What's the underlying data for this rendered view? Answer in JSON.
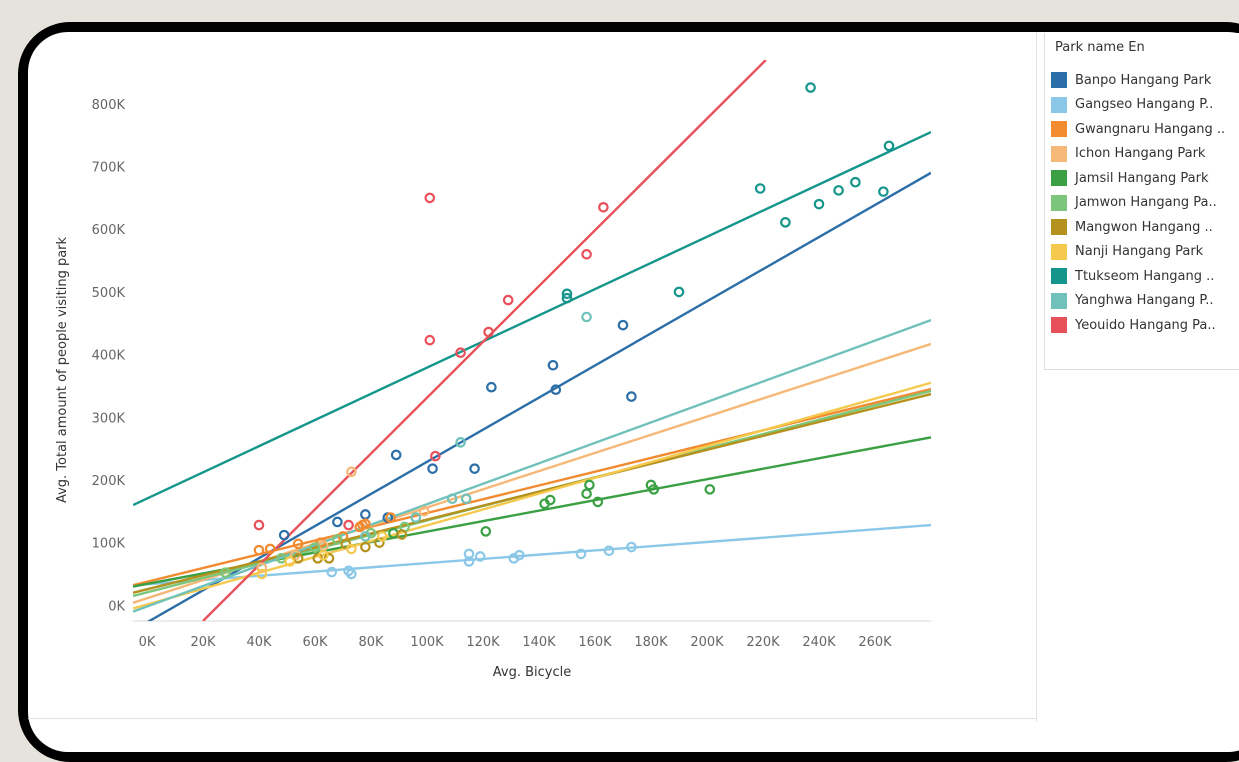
{
  "colors": {
    "axis": "#666666",
    "grid": "#e6e6e6"
  },
  "legend": {
    "title": "Park name En"
  },
  "chart_data": {
    "type": "scatter",
    "xlabel": "Avg. Bicycle",
    "ylabel": "Avg. Total amount of people visiting park",
    "xlim": [
      -5000,
      280000
    ],
    "ylim": [
      -25000,
      870000
    ],
    "x_ticks": [
      0,
      20000,
      40000,
      60000,
      80000,
      100000,
      120000,
      140000,
      160000,
      180000,
      200000,
      220000,
      240000,
      260000
    ],
    "x_tick_labels": [
      "0K",
      "20K",
      "40K",
      "60K",
      "80K",
      "100K",
      "120K",
      "140K",
      "160K",
      "180K",
      "200K",
      "220K",
      "240K",
      "260K"
    ],
    "y_ticks": [
      0,
      100000,
      200000,
      300000,
      400000,
      500000,
      600000,
      700000,
      800000
    ],
    "y_tick_labels": [
      "0K",
      "100K",
      "200K",
      "300K",
      "400K",
      "500K",
      "600K",
      "700K",
      "800K"
    ],
    "legend_position": "right",
    "grid": false,
    "trend_lines": true,
    "series": [
      {
        "name": "Banpo Hangang Park",
        "color": "#2c6ea8",
        "points": [
          [
            49000,
            112000
          ],
          [
            68000,
            133000
          ],
          [
            78000,
            145000
          ],
          [
            86000,
            140000
          ],
          [
            89000,
            240000
          ],
          [
            102000,
            218000
          ],
          [
            117000,
            218000
          ],
          [
            123000,
            348000
          ],
          [
            145000,
            383000
          ],
          [
            146000,
            344000
          ],
          [
            170000,
            447000
          ],
          [
            173000,
            333000
          ]
        ],
        "trend": [
          [
            -5000,
            -40000
          ],
          [
            280000,
            690000
          ]
        ]
      },
      {
        "name": "Gangseo Hangang P..",
        "color": "#8bc8e8",
        "points": [
          [
            66000,
            53000
          ],
          [
            72000,
            55000
          ],
          [
            73000,
            50000
          ],
          [
            115000,
            82000
          ],
          [
            115000,
            70000
          ],
          [
            119000,
            78000
          ],
          [
            131000,
            75000
          ],
          [
            133000,
            80000
          ],
          [
            155000,
            82000
          ],
          [
            165000,
            87000
          ],
          [
            173000,
            93000
          ]
        ],
        "trend": [
          [
            -5000,
            32000
          ],
          [
            280000,
            128000
          ]
        ]
      },
      {
        "name": "Gwangnaru Hangang ..",
        "color": "#f28a30",
        "points": [
          [
            40000,
            88000
          ],
          [
            44000,
            90000
          ],
          [
            54000,
            98000
          ],
          [
            62000,
            100000
          ],
          [
            70000,
            110000
          ],
          [
            76000,
            125000
          ],
          [
            77000,
            128000
          ],
          [
            78000,
            130000
          ],
          [
            87000,
            140000
          ]
        ],
        "trend": [
          [
            -5000,
            32000
          ],
          [
            280000,
            345000
          ]
        ]
      },
      {
        "name": "Ichon Hangang Park",
        "color": "#f6b877",
        "points": [
          [
            41000,
            60000
          ],
          [
            53000,
            80000
          ],
          [
            63000,
            95000
          ],
          [
            73000,
            213000
          ],
          [
            80000,
            115000
          ],
          [
            99000,
            150000
          ],
          [
            114000,
            170000
          ]
        ],
        "trend": [
          [
            -5000,
            4000
          ],
          [
            280000,
            417000
          ]
        ]
      },
      {
        "name": "Jamsil Hangang Park",
        "color": "#3aa043",
        "points": [
          [
            88000,
            115000
          ],
          [
            121000,
            118000
          ],
          [
            142000,
            162000
          ],
          [
            144000,
            168000
          ],
          [
            157000,
            178000
          ],
          [
            158000,
            192000
          ],
          [
            161000,
            165000
          ],
          [
            180000,
            192000
          ],
          [
            181000,
            185000
          ],
          [
            201000,
            185000
          ]
        ],
        "trend": [
          [
            -5000,
            30000
          ],
          [
            280000,
            268000
          ]
        ]
      },
      {
        "name": "Jamwon Hangang Pa..",
        "color": "#7bc67a",
        "points": [
          [
            28000,
            52000
          ],
          [
            48000,
            75000
          ],
          [
            60000,
            92000
          ],
          [
            68000,
            105000
          ],
          [
            80000,
            115000
          ],
          [
            92000,
            125000
          ]
        ],
        "trend": [
          [
            -5000,
            15000
          ],
          [
            280000,
            342000
          ]
        ]
      },
      {
        "name": "Mangwon Hangang ..",
        "color": "#b5911e",
        "points": [
          [
            54000,
            75000
          ],
          [
            61000,
            75000
          ],
          [
            65000,
            75000
          ],
          [
            71000,
            98000
          ],
          [
            78000,
            93000
          ],
          [
            83000,
            100000
          ],
          [
            91000,
            113000
          ]
        ],
        "trend": [
          [
            -5000,
            20000
          ],
          [
            280000,
            337000
          ]
        ]
      },
      {
        "name": "Nanji Hangang Park",
        "color": "#f4c94d",
        "points": [
          [
            41000,
            50000
          ],
          [
            51000,
            70000
          ],
          [
            63000,
            80000
          ],
          [
            73000,
            90000
          ],
          [
            84000,
            110000
          ]
        ],
        "trend": [
          [
            -5000,
            -5000
          ],
          [
            280000,
            355000
          ]
        ]
      },
      {
        "name": "Ttukseom Hangang ..",
        "color": "#15968c",
        "points": [
          [
            150000,
            497000
          ],
          [
            150000,
            490000
          ],
          [
            190000,
            500000
          ],
          [
            219000,
            665000
          ],
          [
            228000,
            611000
          ],
          [
            237000,
            826000
          ],
          [
            240000,
            640000
          ],
          [
            247000,
            662000
          ],
          [
            253000,
            675000
          ],
          [
            263000,
            660000
          ],
          [
            265000,
            733000
          ]
        ],
        "trend": [
          [
            -5000,
            160000
          ],
          [
            280000,
            755000
          ]
        ]
      },
      {
        "name": "Yanghwa Hangang P..",
        "color": "#6fc1b9",
        "points": [
          [
            78000,
            110000
          ],
          [
            96000,
            140000
          ],
          [
            109000,
            170000
          ],
          [
            112000,
            260000
          ],
          [
            114000,
            170000
          ],
          [
            157000,
            460000
          ]
        ],
        "trend": [
          [
            -5000,
            -10000
          ],
          [
            280000,
            455000
          ]
        ]
      },
      {
        "name": "Yeouido Hangang Pa..",
        "color": "#e8505a",
        "points": [
          [
            40000,
            128000
          ],
          [
            72000,
            128000
          ],
          [
            101000,
            650000
          ],
          [
            101000,
            423000
          ],
          [
            103000,
            238000
          ],
          [
            112000,
            403000
          ],
          [
            122000,
            436000
          ],
          [
            129000,
            487000
          ],
          [
            157000,
            560000
          ],
          [
            163000,
            635000
          ]
        ],
        "trend": [
          [
            20000,
            -25000
          ],
          [
            221000,
            870000
          ]
        ]
      }
    ]
  }
}
